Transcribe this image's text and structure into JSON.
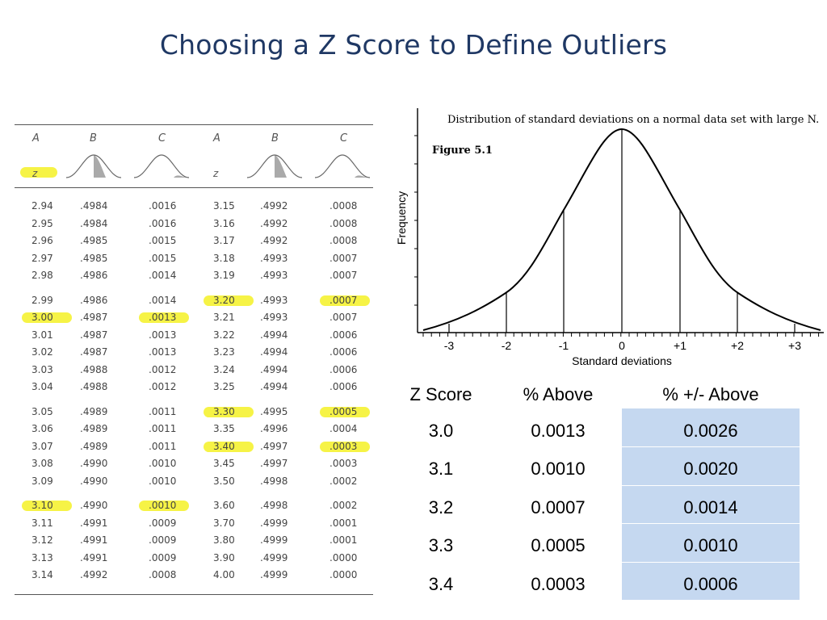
{
  "title": "Choosing a Z Score to Define Outliers",
  "ztable": {
    "col_headers": [
      "A",
      "B",
      "C",
      "A",
      "B",
      "C"
    ],
    "z_label": "z",
    "rows": [
      [
        "2.94",
        ".4984",
        ".0016",
        "3.15",
        ".4992",
        ".0008"
      ],
      [
        "2.95",
        ".4984",
        ".0016",
        "3.16",
        ".4992",
        ".0008"
      ],
      [
        "2.96",
        ".4985",
        ".0015",
        "3.17",
        ".4992",
        ".0008"
      ],
      [
        "2.97",
        ".4985",
        ".0015",
        "3.18",
        ".4993",
        ".0007"
      ],
      [
        "2.98",
        ".4986",
        ".0014",
        "3.19",
        ".4993",
        ".0007"
      ],
      [
        "2.99",
        ".4986",
        ".0014",
        "3.20",
        ".4993",
        ".0007"
      ],
      [
        "3.00",
        ".4987",
        ".0013",
        "3.21",
        ".4993",
        ".0007"
      ],
      [
        "3.01",
        ".4987",
        ".0013",
        "3.22",
        ".4994",
        ".0006"
      ],
      [
        "3.02",
        ".4987",
        ".0013",
        "3.23",
        ".4994",
        ".0006"
      ],
      [
        "3.03",
        ".4988",
        ".0012",
        "3.24",
        ".4994",
        ".0006"
      ],
      [
        "3.04",
        ".4988",
        ".0012",
        "3.25",
        ".4994",
        ".0006"
      ],
      [
        "3.05",
        ".4989",
        ".0011",
        "3.30",
        ".4995",
        ".0005"
      ],
      [
        "3.06",
        ".4989",
        ".0011",
        "3.35",
        ".4996",
        ".0004"
      ],
      [
        "3.07",
        ".4989",
        ".0011",
        "3.40",
        ".4997",
        ".0003"
      ],
      [
        "3.08",
        ".4990",
        ".0010",
        "3.45",
        ".4997",
        ".0003"
      ],
      [
        "3.09",
        ".4990",
        ".0010",
        "3.50",
        ".4998",
        ".0002"
      ],
      [
        "3.10",
        ".4990",
        ".0010",
        "3.60",
        ".4998",
        ".0002"
      ],
      [
        "3.11",
        ".4991",
        ".0009",
        "3.70",
        ".4999",
        ".0001"
      ],
      [
        "3.12",
        ".4991",
        ".0009",
        "3.80",
        ".4999",
        ".0001"
      ],
      [
        "3.13",
        ".4991",
        ".0009",
        "3.90",
        ".4999",
        ".0000"
      ],
      [
        "3.14",
        ".4992",
        ".0008",
        "4.00",
        ".4999",
        ".0000"
      ]
    ],
    "highlighted": [
      [
        0,
        "z"
      ],
      [
        5,
        3
      ],
      [
        5,
        5
      ],
      [
        6,
        0
      ],
      [
        6,
        2
      ],
      [
        11,
        3
      ],
      [
        11,
        5
      ],
      [
        13,
        3
      ],
      [
        13,
        5
      ],
      [
        16,
        0
      ],
      [
        16,
        2
      ]
    ],
    "highlight_color": "#f6f23c"
  },
  "figure": {
    "caption": "Distribution of standard deviations on a normal data set with large N.",
    "label": "Figure 5.1",
    "ylabel": "Frequency",
    "xlabel": "Standard deviations",
    "ticks": [
      "-3",
      "-2",
      "-1",
      "0",
      "+1",
      "+2",
      "+3"
    ]
  },
  "zscores": {
    "headers": [
      "Z Score",
      "% Above",
      "% +/- Above"
    ],
    "rows": [
      [
        "3.0",
        "0.0013",
        "0.0026"
      ],
      [
        "3.1",
        "0.0010",
        "0.0020"
      ],
      [
        "3.2",
        "0.0007",
        "0.0014"
      ],
      [
        "3.3",
        "0.0005",
        "0.0010"
      ],
      [
        "3.4",
        "0.0003",
        "0.0006"
      ]
    ],
    "band_color": "#c5d8f0"
  },
  "colors": {
    "title": "#1f3864"
  }
}
